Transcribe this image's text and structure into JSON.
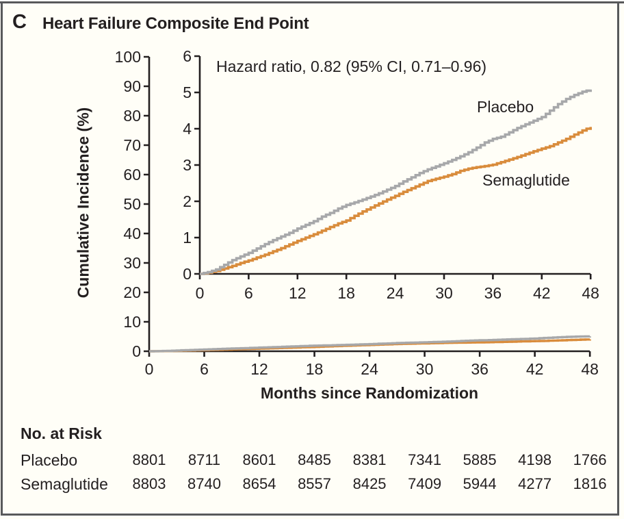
{
  "panel": {
    "letter": "C",
    "title": "Heart Failure Composite End Point"
  },
  "annotation": "Hazard ratio, 0.82 (95% CI, 0.71–0.96)",
  "colors": {
    "background": "#FFFEF7",
    "frame": "#58595B",
    "axis": "#231F20",
    "placebo": "#A7A8AA",
    "semaglutide": "#D98C3C"
  },
  "chart_data": {
    "type": "line",
    "title": "Heart Failure Composite End Point",
    "xlabel": "Months since Randomization",
    "ylabel": "Cumulative Incidence (%)",
    "x_months": [
      0,
      1,
      2,
      3,
      4,
      5,
      6,
      7,
      8,
      9,
      10,
      11,
      12,
      13,
      14,
      15,
      16,
      17,
      18,
      19,
      20,
      21,
      22,
      23,
      24,
      25,
      26,
      27,
      28,
      29,
      30,
      31,
      32,
      33,
      34,
      35,
      36,
      37,
      38,
      39,
      40,
      41,
      42,
      43,
      44,
      45,
      46,
      47,
      48
    ],
    "series": [
      {
        "name": "Placebo",
        "color": "#A7A8AA",
        "values": [
          0,
          0.05,
          0.12,
          0.25,
          0.38,
          0.48,
          0.58,
          0.7,
          0.82,
          0.93,
          1.03,
          1.13,
          1.25,
          1.35,
          1.45,
          1.58,
          1.68,
          1.8,
          1.9,
          1.97,
          2.05,
          2.13,
          2.22,
          2.32,
          2.42,
          2.55,
          2.66,
          2.78,
          2.88,
          2.96,
          3.05,
          3.14,
          3.24,
          3.35,
          3.48,
          3.62,
          3.72,
          3.78,
          3.9,
          4.02,
          4.12,
          4.22,
          4.32,
          4.5,
          4.68,
          4.82,
          4.93,
          5.02,
          5.08
        ]
      },
      {
        "name": "Semaglutide",
        "color": "#D98C3C",
        "values": [
          0,
          0.03,
          0.08,
          0.15,
          0.22,
          0.3,
          0.37,
          0.45,
          0.53,
          0.62,
          0.71,
          0.81,
          0.91,
          1.0,
          1.09,
          1.19,
          1.29,
          1.39,
          1.47,
          1.6,
          1.72,
          1.83,
          1.94,
          2.05,
          2.15,
          2.26,
          2.36,
          2.46,
          2.56,
          2.62,
          2.68,
          2.75,
          2.84,
          2.9,
          2.94,
          2.97,
          3.01,
          3.08,
          3.15,
          3.22,
          3.3,
          3.38,
          3.45,
          3.52,
          3.62,
          3.72,
          3.84,
          3.95,
          4.05
        ]
      }
    ],
    "main_axis": {
      "ylim": [
        0,
        100
      ],
      "xlim": [
        0,
        48
      ],
      "yticks": [
        0,
        10,
        20,
        30,
        40,
        50,
        60,
        70,
        80,
        90,
        100
      ],
      "xticks": [
        0,
        6,
        12,
        18,
        24,
        30,
        36,
        42,
        48
      ]
    },
    "inset_axis": {
      "ylim": [
        0,
        6
      ],
      "xlim": [
        0,
        48
      ],
      "yticks": [
        0,
        1,
        2,
        3,
        4,
        5,
        6
      ],
      "xticks": [
        0,
        6,
        12,
        18,
        24,
        30,
        36,
        42,
        48
      ]
    },
    "annotation": "Hazard ratio, 0.82 (95% CI, 0.71–0.96)",
    "legend_position": "labels-on-curves",
    "grid": false
  },
  "risk_table": {
    "title": "No. at Risk",
    "months": [
      0,
      6,
      12,
      18,
      24,
      30,
      36,
      42,
      48
    ],
    "rows": [
      {
        "label": "Placebo",
        "values": [
          "8801",
          "8711",
          "8601",
          "8485",
          "8381",
          "7341",
          "5885",
          "4198",
          "1766"
        ]
      },
      {
        "label": "Semaglutide",
        "values": [
          "8803",
          "8740",
          "8654",
          "8557",
          "8425",
          "7409",
          "5944",
          "4277",
          "1816"
        ]
      }
    ]
  }
}
